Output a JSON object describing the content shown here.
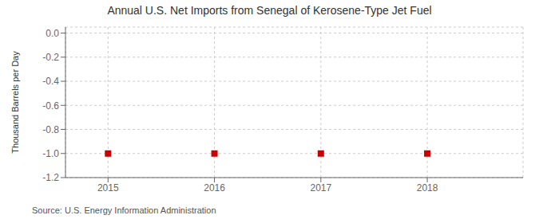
{
  "chart_data": {
    "type": "scatter",
    "title": "Annual U.S. Net Imports from Senegal of Kerosene-Type Jet Fuel",
    "y_label": "Thousand Barrels per Day",
    "annotations": [
      "Source: U.S. Energy Information Administration"
    ],
    "x": [
      2015,
      2016,
      2017,
      2018
    ],
    "values": [
      -1.0,
      -1.0,
      -1.0,
      -1.0
    ],
    "color": "#cc0000",
    "marker": "square",
    "xlim": [
      2014.6,
      2018.9
    ],
    "ylim": [
      -1.2,
      0.05
    ],
    "xticks": [
      2015,
      2016,
      2017,
      2018
    ],
    "yticks": [
      {
        "value": 0,
        "label": "0.0"
      },
      -0.2,
      -0.4,
      -0.6,
      -0.8,
      {
        "value": -1,
        "label": "-1.0"
      },
      -1.2
    ],
    "grid": true
  }
}
